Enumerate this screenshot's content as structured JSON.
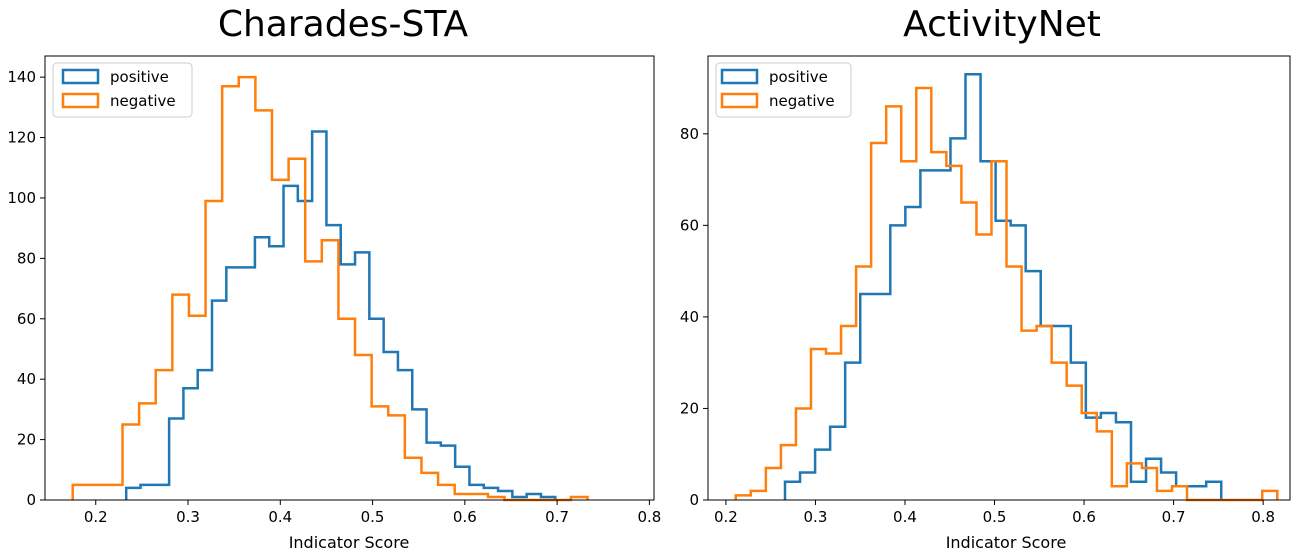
{
  "colors": {
    "positive": "#1f77b4",
    "negative": "#ff7f0e"
  },
  "chart_data": [
    {
      "type": "histogram",
      "title": "Charades-STA",
      "xlabel": "Indicator Score",
      "ylabel": "",
      "xlim": [
        0.145,
        0.805
      ],
      "ylim": [
        0,
        147
      ],
      "xticks": [
        0.2,
        0.3,
        0.4,
        0.5,
        0.6,
        0.7,
        0.8
      ],
      "yticks": [
        0,
        20,
        40,
        60,
        80,
        100,
        120,
        140
      ],
      "legend": "top-left",
      "series": [
        {
          "name": "positive",
          "color": "#1f77b4",
          "x_start": 0.233,
          "bin_width": 0.0155,
          "counts": [
            4,
            5,
            5,
            27,
            37,
            43,
            66,
            77,
            77,
            87,
            84,
            104,
            99,
            122,
            91,
            78,
            82,
            60,
            49,
            43,
            30,
            19,
            18,
            11,
            5,
            4,
            3,
            1,
            2,
            1
          ]
        },
        {
          "name": "negative",
          "color": "#ff7f0e",
          "x_start": 0.175,
          "bin_width": 0.018,
          "counts": [
            5,
            5,
            5,
            25,
            32,
            43,
            68,
            61,
            99,
            137,
            140,
            129,
            106,
            113,
            79,
            86,
            60,
            48,
            31,
            28,
            14,
            9,
            5,
            2,
            2,
            1,
            0,
            0,
            0,
            0,
            1
          ]
        }
      ]
    },
    {
      "type": "histogram",
      "title": "ActivityNet",
      "xlabel": "Indicator Score",
      "ylabel": "",
      "xlim": [
        0.18,
        0.83
      ],
      "ylim": [
        0,
        97
      ],
      "xticks": [
        0.2,
        0.3,
        0.4,
        0.5,
        0.6,
        0.7,
        0.8
      ],
      "yticks": [
        0,
        20,
        40,
        60,
        80
      ],
      "legend": "top-left",
      "series": [
        {
          "name": "positive",
          "color": "#1f77b4",
          "x_start": 0.266,
          "bin_width": 0.0168,
          "counts": [
            4,
            6,
            11,
            16,
            30,
            45,
            45,
            60,
            64,
            72,
            72,
            79,
            93,
            74,
            61,
            60,
            50,
            38,
            38,
            30,
            18,
            19,
            17,
            4,
            9,
            6,
            3,
            3,
            4
          ]
        },
        {
          "name": "negative",
          "color": "#ff7f0e",
          "x_start": 0.211,
          "bin_width": 0.0168,
          "counts": [
            1,
            2,
            7,
            12,
            20,
            33,
            32,
            38,
            51,
            78,
            86,
            74,
            90,
            76,
            73,
            65,
            58,
            74,
            51,
            37,
            38,
            30,
            25,
            19,
            15,
            3,
            8,
            7,
            2,
            3,
            0,
            0,
            0,
            0,
            0,
            2
          ]
        }
      ]
    }
  ]
}
